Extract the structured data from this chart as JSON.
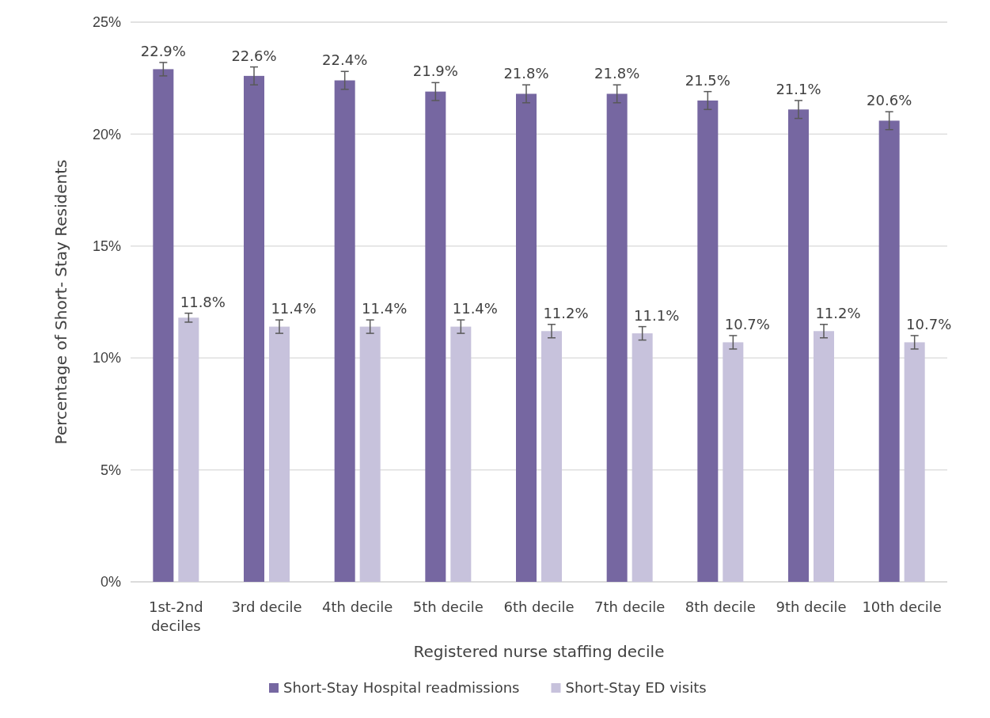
{
  "chart_data": {
    "type": "bar",
    "xlabel": "Registered nurse staffing decile",
    "ylabel": "Percentage of Short- Stay Residents",
    "categories": [
      "1st-2nd deciles",
      "3rd decile",
      "4th decile",
      "5th decile",
      "6th decile",
      "7th decile",
      "8th decile",
      "9th decile",
      "10th decile"
    ],
    "series": [
      {
        "name": "Short-Stay Hospital readmissions",
        "color": "#7667a1",
        "values": [
          22.9,
          22.6,
          22.4,
          21.9,
          21.8,
          21.8,
          21.5,
          21.1,
          20.6
        ],
        "errors": [
          0.3,
          0.4,
          0.4,
          0.4,
          0.4,
          0.4,
          0.4,
          0.4,
          0.4
        ],
        "value_labels": [
          "22.9%",
          "22.6%",
          "22.4%",
          "21.9%",
          "21.8%",
          "21.8%",
          "21.5%",
          "21.1%",
          "20.6%"
        ]
      },
      {
        "name": "Short-Stay ED visits",
        "color": "#c7c2dc",
        "values": [
          11.8,
          11.4,
          11.4,
          11.4,
          11.2,
          11.1,
          10.7,
          11.2,
          10.7
        ],
        "errors": [
          0.2,
          0.3,
          0.3,
          0.3,
          0.3,
          0.3,
          0.3,
          0.3,
          0.3
        ],
        "value_labels": [
          "11.8%",
          "11.4%",
          "11.4%",
          "11.4%",
          "11.2%",
          "11.1%",
          "10.7%",
          "11.2%",
          "10.7%"
        ]
      }
    ],
    "ylim": [
      0,
      25
    ],
    "yticks": [
      {
        "value": 0,
        "label": "0%"
      },
      {
        "value": 5,
        "label": "5%"
      },
      {
        "value": 10,
        "label": "10%"
      },
      {
        "value": 15,
        "label": "15%"
      },
      {
        "value": 20,
        "label": "20%"
      },
      {
        "value": 25,
        "label": "25%"
      }
    ],
    "grid": "y",
    "legend": "bottom"
  }
}
